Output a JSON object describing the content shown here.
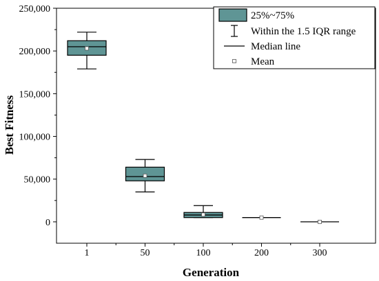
{
  "chart_data": {
    "type": "box",
    "xlabel": "Generation",
    "ylabel": "Best Fitness",
    "ylim": [
      -25000,
      250000
    ],
    "yticks": [
      0,
      50000,
      100000,
      150000,
      200000,
      250000
    ],
    "ytick_labels": [
      "0",
      "50,000",
      "100,000",
      "150,000",
      "200,000",
      "250,000"
    ],
    "categories": [
      "1",
      "50",
      "100",
      "200",
      "300"
    ],
    "boxes": [
      {
        "category": "1",
        "whisker_low": 179000,
        "q1": 195000,
        "median": 205000,
        "q3": 212000,
        "whisker_high": 222000,
        "mean": 203000
      },
      {
        "category": "50",
        "whisker_low": 35000,
        "q1": 48000,
        "median": 53000,
        "q3": 64000,
        "whisker_high": 73000,
        "mean": 54000
      },
      {
        "category": "100",
        "whisker_low": 5000,
        "q1": 5000,
        "median": 8000,
        "q3": 11000,
        "whisker_high": 19000,
        "mean": 8500
      },
      {
        "category": "200",
        "whisker_low": 5000,
        "q1": 5000,
        "median": 5000,
        "q3": 5000,
        "whisker_high": 5000,
        "mean": 5000
      },
      {
        "category": "300",
        "whisker_low": 0,
        "q1": 0,
        "median": 0,
        "q3": 0,
        "whisker_high": 0,
        "mean": 0
      }
    ],
    "legend": {
      "placement": "top-right",
      "items": [
        {
          "label": "25%~75%",
          "symbol": "box"
        },
        {
          "label": "Within the 1.5 IQR range",
          "symbol": "whisker"
        },
        {
          "label": "Median line",
          "symbol": "line"
        },
        {
          "label": "Mean",
          "symbol": "square"
        }
      ]
    },
    "colors": {
      "box_fill": "#5f9595",
      "stroke": "#000000"
    },
    "grid": false
  }
}
